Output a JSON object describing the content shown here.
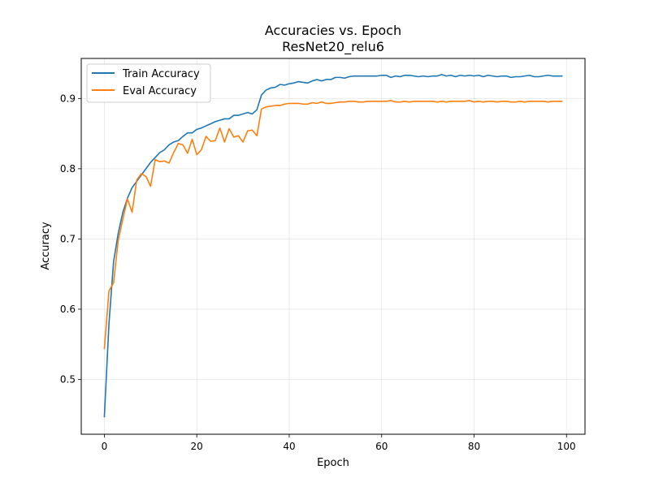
{
  "chart_data": {
    "type": "line",
    "title": "Accuracies vs. Epoch",
    "subtitle": "ResNet20_relu6",
    "xlabel": "Epoch",
    "ylabel": "Accuracy",
    "xlim": [
      -5,
      104
    ],
    "ylim": [
      0.422,
      0.957
    ],
    "xticks": [
      0,
      20,
      40,
      60,
      80,
      100
    ],
    "yticks": [
      0.5,
      0.6,
      0.7,
      0.8,
      0.9
    ],
    "grid": true,
    "legend_position": "top-left",
    "series": [
      {
        "name": "Train Accuracy",
        "color": "#1f77b4",
        "x": [
          0,
          1,
          2,
          3,
          4,
          5,
          6,
          7,
          8,
          9,
          10,
          11,
          12,
          13,
          14,
          15,
          16,
          17,
          18,
          19,
          20,
          21,
          22,
          23,
          24,
          25,
          26,
          27,
          28,
          29,
          30,
          31,
          32,
          33,
          34,
          35,
          36,
          37,
          38,
          39,
          40,
          41,
          42,
          43,
          44,
          45,
          46,
          47,
          48,
          49,
          50,
          51,
          52,
          53,
          54,
          55,
          56,
          57,
          58,
          59,
          60,
          61,
          62,
          63,
          64,
          65,
          66,
          67,
          68,
          69,
          70,
          71,
          72,
          73,
          74,
          75,
          76,
          77,
          78,
          79,
          80,
          81,
          82,
          83,
          84,
          85,
          86,
          87,
          88,
          89,
          90,
          91,
          92,
          93,
          94,
          95,
          96,
          97,
          98,
          99
        ],
        "values": [
          0.447,
          0.58,
          0.668,
          0.708,
          0.738,
          0.758,
          0.773,
          0.782,
          0.791,
          0.8,
          0.809,
          0.816,
          0.823,
          0.827,
          0.834,
          0.838,
          0.84,
          0.846,
          0.851,
          0.851,
          0.856,
          0.858,
          0.861,
          0.864,
          0.867,
          0.869,
          0.871,
          0.871,
          0.876,
          0.876,
          0.878,
          0.88,
          0.878,
          0.884,
          0.905,
          0.912,
          0.915,
          0.916,
          0.92,
          0.919,
          0.921,
          0.922,
          0.924,
          0.923,
          0.922,
          0.925,
          0.927,
          0.925,
          0.927,
          0.927,
          0.93,
          0.93,
          0.929,
          0.931,
          0.932,
          0.932,
          0.932,
          0.932,
          0.932,
          0.932,
          0.933,
          0.933,
          0.93,
          0.932,
          0.931,
          0.933,
          0.933,
          0.932,
          0.931,
          0.932,
          0.931,
          0.932,
          0.932,
          0.934,
          0.932,
          0.933,
          0.931,
          0.933,
          0.932,
          0.933,
          0.932,
          0.933,
          0.931,
          0.933,
          0.932,
          0.931,
          0.932,
          0.932,
          0.93,
          0.931,
          0.931,
          0.932,
          0.933,
          0.931,
          0.931,
          0.932,
          0.933,
          0.932,
          0.932,
          0.932
        ]
      },
      {
        "name": "Eval Accuracy",
        "color": "#ff7f0e",
        "x": [
          0,
          1,
          2,
          3,
          4,
          5,
          6,
          7,
          8,
          9,
          10,
          11,
          12,
          13,
          14,
          15,
          16,
          17,
          18,
          19,
          20,
          21,
          22,
          23,
          24,
          25,
          26,
          27,
          28,
          29,
          30,
          31,
          32,
          33,
          34,
          35,
          36,
          37,
          38,
          39,
          40,
          41,
          42,
          43,
          44,
          45,
          46,
          47,
          48,
          49,
          50,
          51,
          52,
          53,
          54,
          55,
          56,
          57,
          58,
          59,
          60,
          61,
          62,
          63,
          64,
          65,
          66,
          67,
          68,
          69,
          70,
          71,
          72,
          73,
          74,
          75,
          76,
          77,
          78,
          79,
          80,
          81,
          82,
          83,
          84,
          85,
          86,
          87,
          88,
          89,
          90,
          91,
          92,
          93,
          94,
          95,
          96,
          97,
          98,
          99
        ],
        "values": [
          0.544,
          0.626,
          0.638,
          0.698,
          0.728,
          0.757,
          0.738,
          0.784,
          0.793,
          0.789,
          0.775,
          0.813,
          0.81,
          0.811,
          0.808,
          0.823,
          0.836,
          0.834,
          0.822,
          0.842,
          0.82,
          0.827,
          0.846,
          0.839,
          0.84,
          0.858,
          0.838,
          0.857,
          0.845,
          0.847,
          0.838,
          0.854,
          0.855,
          0.847,
          0.885,
          0.888,
          0.889,
          0.89,
          0.89,
          0.892,
          0.893,
          0.893,
          0.893,
          0.892,
          0.892,
          0.894,
          0.893,
          0.895,
          0.893,
          0.893,
          0.894,
          0.895,
          0.895,
          0.896,
          0.896,
          0.895,
          0.895,
          0.896,
          0.896,
          0.896,
          0.896,
          0.896,
          0.897,
          0.895,
          0.895,
          0.896,
          0.895,
          0.896,
          0.896,
          0.896,
          0.896,
          0.896,
          0.895,
          0.896,
          0.895,
          0.896,
          0.896,
          0.896,
          0.896,
          0.897,
          0.895,
          0.896,
          0.895,
          0.896,
          0.896,
          0.895,
          0.896,
          0.896,
          0.895,
          0.895,
          0.896,
          0.895,
          0.896,
          0.896,
          0.896,
          0.896,
          0.895,
          0.896,
          0.896,
          0.896
        ]
      }
    ]
  }
}
